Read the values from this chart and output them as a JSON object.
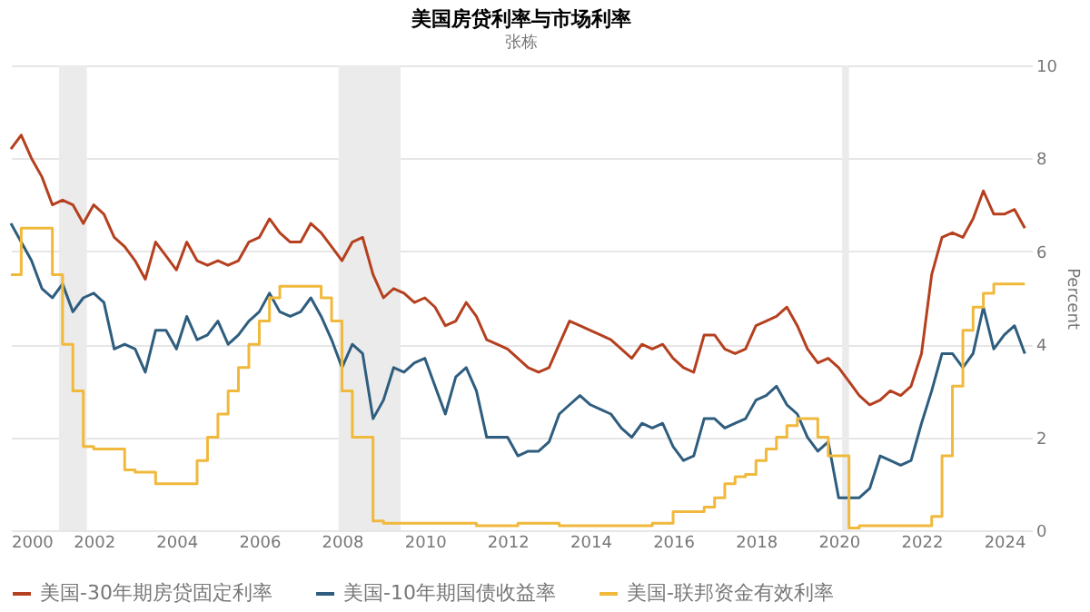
{
  "chart_data": {
    "type": "line",
    "title": "美国房贷利率与市场利率",
    "subtitle": "张栋",
    "ylabel": "Percent",
    "x": [
      "2000-01",
      "2000-04",
      "2000-07",
      "2000-10",
      "2001-01",
      "2001-04",
      "2001-07",
      "2001-10",
      "2002-01",
      "2002-04",
      "2002-07",
      "2002-10",
      "2003-01",
      "2003-04",
      "2003-07",
      "2003-10",
      "2004-01",
      "2004-04",
      "2004-07",
      "2004-10",
      "2005-01",
      "2005-04",
      "2005-07",
      "2005-10",
      "2006-01",
      "2006-04",
      "2006-07",
      "2006-10",
      "2007-01",
      "2007-04",
      "2007-07",
      "2007-10",
      "2008-01",
      "2008-04",
      "2008-07",
      "2008-10",
      "2009-01",
      "2009-04",
      "2009-07",
      "2009-10",
      "2010-01",
      "2010-04",
      "2010-07",
      "2010-10",
      "2011-01",
      "2011-04",
      "2011-07",
      "2011-10",
      "2012-01",
      "2012-04",
      "2012-07",
      "2012-10",
      "2013-01",
      "2013-04",
      "2013-07",
      "2013-10",
      "2014-01",
      "2014-04",
      "2014-07",
      "2014-10",
      "2015-01",
      "2015-04",
      "2015-07",
      "2015-10",
      "2016-01",
      "2016-04",
      "2016-07",
      "2016-10",
      "2017-01",
      "2017-04",
      "2017-07",
      "2017-10",
      "2018-01",
      "2018-04",
      "2018-07",
      "2018-10",
      "2019-01",
      "2019-04",
      "2019-07",
      "2019-10",
      "2020-01",
      "2020-04",
      "2020-07",
      "2020-10",
      "2021-01",
      "2021-04",
      "2021-07",
      "2021-10",
      "2022-01",
      "2022-04",
      "2022-07",
      "2022-10",
      "2023-01",
      "2023-04",
      "2023-07",
      "2023-10",
      "2024-01",
      "2024-04",
      "2024-07"
    ],
    "series": [
      {
        "name": "美国-30年期房贷固定利率",
        "color": "#b5401f",
        "values": [
          8.2,
          8.5,
          8.0,
          7.6,
          7.0,
          7.1,
          7.0,
          6.6,
          7.0,
          6.8,
          6.3,
          6.1,
          5.8,
          5.4,
          6.2,
          5.9,
          5.6,
          6.2,
          5.8,
          5.7,
          5.8,
          5.7,
          5.8,
          6.2,
          6.3,
          6.7,
          6.4,
          6.2,
          6.2,
          6.6,
          6.4,
          6.1,
          5.8,
          6.2,
          6.3,
          5.5,
          5.0,
          5.2,
          5.1,
          4.9,
          5.0,
          4.8,
          4.4,
          4.5,
          4.9,
          4.6,
          4.1,
          4.0,
          3.9,
          3.7,
          3.5,
          3.4,
          3.5,
          4.0,
          4.5,
          4.4,
          4.3,
          4.2,
          4.1,
          3.9,
          3.7,
          4.0,
          3.9,
          4.0,
          3.7,
          3.5,
          3.4,
          4.2,
          4.2,
          3.9,
          3.8,
          3.9,
          4.4,
          4.5,
          4.6,
          4.8,
          4.4,
          3.9,
          3.6,
          3.7,
          3.5,
          3.2,
          2.9,
          2.7,
          2.8,
          3.0,
          2.9,
          3.1,
          3.8,
          5.5,
          6.3,
          6.4,
          6.3,
          6.7,
          7.3,
          6.8,
          6.8,
          6.9,
          6.5
        ]
      },
      {
        "name": "美国-10年期国债收益率",
        "color": "#2e5d7e",
        "values": [
          6.6,
          6.2,
          5.8,
          5.2,
          5.0,
          5.3,
          4.7,
          5.0,
          5.1,
          4.9,
          3.9,
          4.0,
          3.9,
          3.4,
          4.3,
          4.3,
          3.9,
          4.6,
          4.1,
          4.2,
          4.5,
          4.0,
          4.2,
          4.5,
          4.7,
          5.1,
          4.7,
          4.6,
          4.7,
          5.0,
          4.6,
          4.1,
          3.5,
          4.0,
          3.8,
          2.4,
          2.8,
          3.5,
          3.4,
          3.6,
          3.7,
          3.1,
          2.5,
          3.3,
          3.5,
          3.0,
          2.0,
          2.0,
          2.0,
          1.6,
          1.7,
          1.7,
          1.9,
          2.5,
          2.7,
          2.9,
          2.7,
          2.6,
          2.5,
          2.2,
          2.0,
          2.3,
          2.2,
          2.3,
          1.8,
          1.5,
          1.6,
          2.4,
          2.4,
          2.2,
          2.3,
          2.4,
          2.8,
          2.9,
          3.1,
          2.7,
          2.5,
          2.0,
          1.7,
          1.9,
          0.7,
          0.7,
          0.7,
          0.9,
          1.6,
          1.5,
          1.4,
          1.5,
          2.3,
          3.0,
          3.8,
          3.8,
          3.5,
          3.8,
          4.8,
          3.9,
          4.2,
          4.4,
          3.8
        ]
      },
      {
        "name": "美国-联邦资金有效利率",
        "color": "#f0b93b",
        "type": "step",
        "values": [
          5.5,
          6.5,
          6.5,
          6.5,
          5.5,
          4.0,
          3.0,
          1.8,
          1.75,
          1.75,
          1.75,
          1.3,
          1.25,
          1.25,
          1.0,
          1.0,
          1.0,
          1.0,
          1.5,
          2.0,
          2.5,
          3.0,
          3.5,
          4.0,
          4.5,
          5.0,
          5.25,
          5.25,
          5.25,
          5.25,
          5.0,
          4.5,
          3.0,
          2.0,
          2.0,
          0.2,
          0.15,
          0.15,
          0.15,
          0.15,
          0.15,
          0.15,
          0.15,
          0.15,
          0.15,
          0.1,
          0.1,
          0.1,
          0.1,
          0.15,
          0.15,
          0.15,
          0.15,
          0.1,
          0.1,
          0.1,
          0.1,
          0.1,
          0.1,
          0.1,
          0.1,
          0.1,
          0.15,
          0.15,
          0.4,
          0.4,
          0.4,
          0.5,
          0.7,
          1.0,
          1.15,
          1.2,
          1.5,
          1.75,
          2.0,
          2.25,
          2.4,
          2.4,
          2.0,
          1.6,
          1.6,
          0.05,
          0.1,
          0.1,
          0.1,
          0.1,
          0.1,
          0.1,
          0.1,
          0.3,
          1.6,
          3.1,
          4.3,
          4.8,
          5.1,
          5.3,
          5.3,
          5.3,
          5.3
        ]
      }
    ],
    "xlim": [
      "2000-01",
      "2024-09"
    ],
    "xticks": [
      "2000",
      "2002",
      "2004",
      "2006",
      "2008",
      "2010",
      "2012",
      "2014",
      "2016",
      "2018",
      "2020",
      "2022",
      "2024"
    ],
    "ylim": [
      0,
      10
    ],
    "yticks": [
      0,
      2,
      4,
      6,
      8,
      10
    ],
    "grid": "y",
    "legend": "bottom",
    "bands": [
      {
        "axis": "x",
        "from": "2001-03",
        "to": "2001-11",
        "color": "#ebebeb"
      },
      {
        "axis": "x",
        "from": "2007-12",
        "to": "2009-06",
        "color": "#ebebeb"
      },
      {
        "axis": "x",
        "from": "2020-02",
        "to": "2020-04",
        "color": "#ebebeb"
      }
    ]
  }
}
